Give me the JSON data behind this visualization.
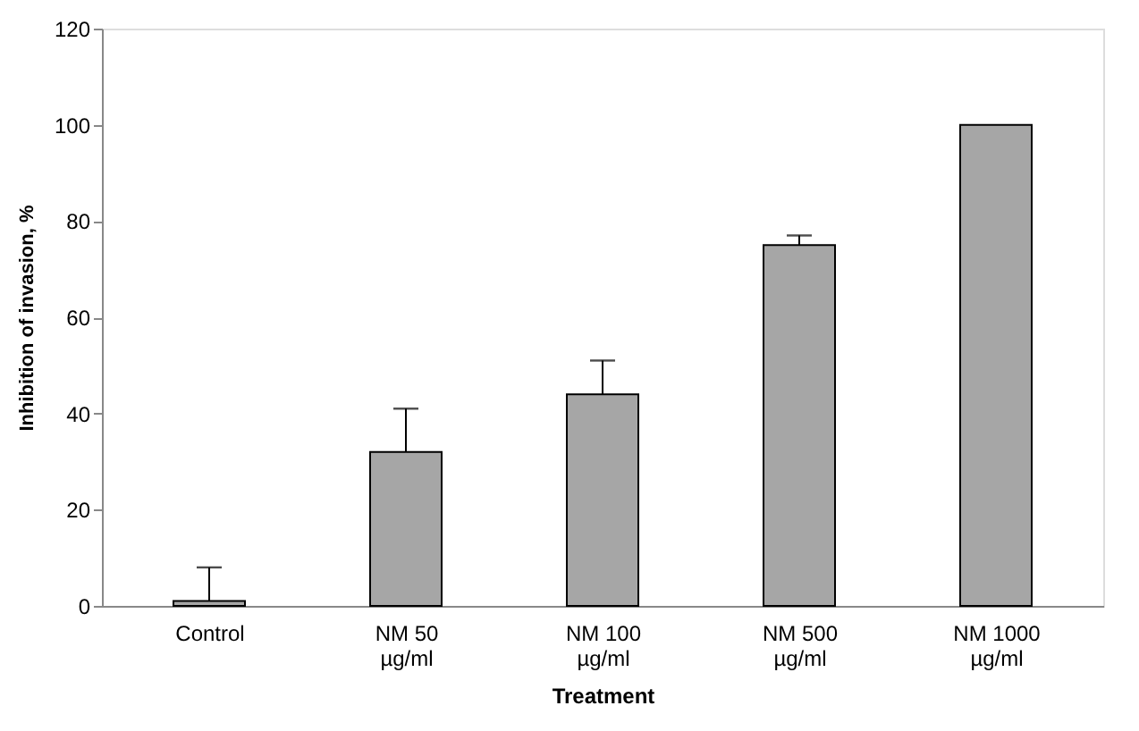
{
  "chart_data": {
    "type": "bar",
    "xlabel": "Treatment",
    "ylabel": "Inhibition of invasion, %",
    "categories": [
      "Control",
      "NM 50\nµg/ml",
      "NM 100\nµg/ml",
      "NM 500\nµg/ml",
      "NM 1000\nµg/ml"
    ],
    "values": [
      1,
      32,
      44,
      75,
      100
    ],
    "errors": [
      [
        1,
        8
      ],
      [
        32,
        41
      ],
      [
        44,
        51
      ],
      [
        75,
        77
      ],
      null
    ],
    "color": "#a6a6a6",
    "ylim": [
      0,
      120
    ],
    "yticks": [
      0,
      20,
      40,
      60,
      80,
      100,
      120
    ],
    "grid": false
  }
}
